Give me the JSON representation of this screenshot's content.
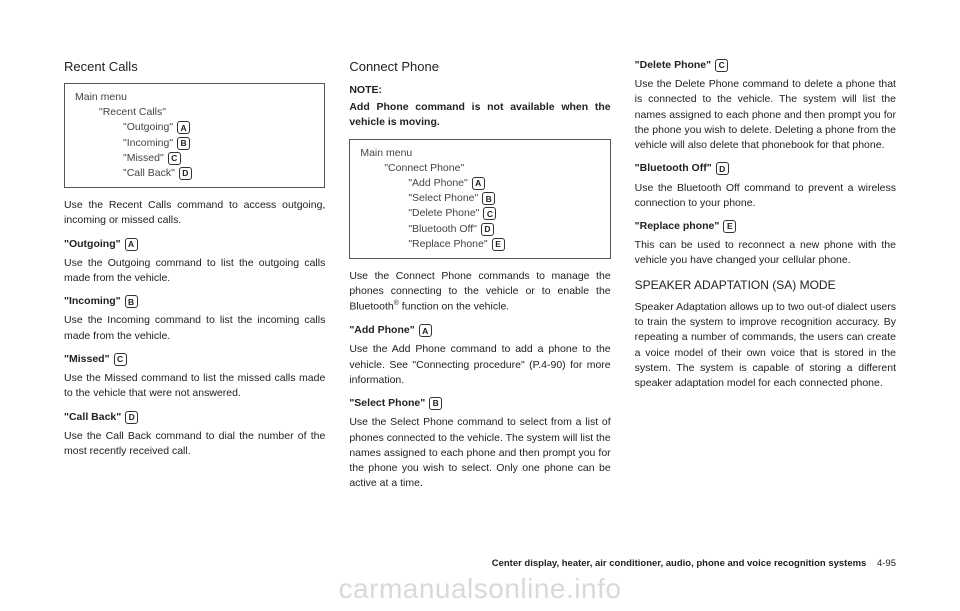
{
  "col1": {
    "title": "Recent Calls",
    "menu": {
      "main": "Main menu",
      "sub": "\"Recent Calls\"",
      "items": [
        {
          "label": "\"Outgoing\"",
          "badge": "A"
        },
        {
          "label": "\"Incoming\"",
          "badge": "B"
        },
        {
          "label": "\"Missed\"",
          "badge": "C"
        },
        {
          "label": "\"Call Back\"",
          "badge": "D"
        }
      ]
    },
    "intro": "Use the Recent Calls command to access outgoing, incoming or missed calls.",
    "terms": [
      {
        "name": "\"Outgoing\"",
        "badge": "A",
        "body": "Use the Outgoing command to list the outgoing calls made from the vehicle."
      },
      {
        "name": "\"Incoming\"",
        "badge": "B",
        "body": "Use the Incoming command to list the incoming calls made from the vehicle."
      },
      {
        "name": "\"Missed\"",
        "badge": "C",
        "body": "Use the Missed command to list the missed calls made to the vehicle that were not answered."
      },
      {
        "name": "\"Call Back\"",
        "badge": "D",
        "body": "Use the Call Back command to dial the number of the most recently received call."
      }
    ]
  },
  "col2": {
    "title": "Connect Phone",
    "note_label": "NOTE:",
    "note_body": "Add Phone command is not available when the vehicle is moving.",
    "menu": {
      "main": "Main menu",
      "sub": "\"Connect Phone\"",
      "items": [
        {
          "label": "\"Add Phone\"",
          "badge": "A"
        },
        {
          "label": "\"Select Phone\"",
          "badge": "B"
        },
        {
          "label": "\"Delete Phone\"",
          "badge": "C"
        },
        {
          "label": "\"Bluetooth Off\"",
          "badge": "D"
        },
        {
          "label": "\"Replace Phone\"",
          "badge": "E"
        }
      ]
    },
    "intro_a": "Use the Connect Phone commands to manage the phones connecting to the vehicle or to enable the Bluetooth",
    "intro_b": " function on the vehicle.",
    "reg": "®",
    "terms": [
      {
        "name": "\"Add Phone\"",
        "badge": "A",
        "body": "Use the Add Phone command to add a phone to the vehicle. See \"Connecting procedure\" (P.4-90) for more information."
      },
      {
        "name": "\"Select Phone\"",
        "badge": "B",
        "body": "Use the Select Phone command to select from a list of phones connected to the vehicle. The system will list the names assigned to each phone and then prompt you for the phone you wish to select. Only one phone can be active at a time."
      }
    ]
  },
  "col3": {
    "terms": [
      {
        "name": "\"Delete Phone\"",
        "badge": "C",
        "body": "Use the Delete Phone command to delete a phone that is connected to the vehicle. The system will list the names assigned to each phone and then prompt you for the phone you wish to delete. Deleting a phone from the vehicle will also delete that phonebook for that phone."
      },
      {
        "name": "\"Bluetooth Off\"",
        "badge": "D",
        "body": "Use the Bluetooth Off command to prevent a wireless connection to your phone."
      },
      {
        "name": "\"Replace phone\"",
        "badge": "E",
        "body": "This can be used to reconnect a new phone with the vehicle you have changed your cellular phone."
      }
    ],
    "sa_title": "SPEAKER ADAPTATION (SA) MODE",
    "sa_body": "Speaker Adaptation allows up to two out-of dialect users to train the system to improve recognition accuracy. By repeating a number of commands, the users can create a voice model of their own voice that is stored in the system. The system is capable of storing a different speaker adaptation model for each connected phone."
  },
  "footer": {
    "text": "Center display, heater, air conditioner, audio, phone and voice recognition systems",
    "page": "4-95"
  },
  "watermark": "carmanualsonline.info"
}
